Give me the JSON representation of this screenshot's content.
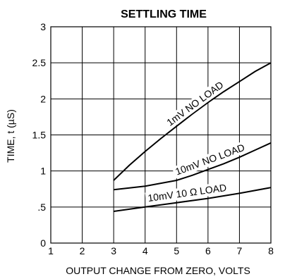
{
  "chart_data": {
    "type": "line",
    "title": "SETTLING TIME",
    "xlabel": "OUTPUT CHANGE FROM ZERO, VOLTS",
    "ylabel": "TIME, t (µS)",
    "xlim": [
      1,
      8
    ],
    "ylim": [
      0,
      3
    ],
    "x_ticks": [
      1,
      2,
      3,
      4,
      5,
      6,
      7,
      8
    ],
    "x_tick_labels": [
      "1",
      "2",
      "3",
      "4",
      "5",
      "6",
      "7",
      "8"
    ],
    "y_ticks": [
      0,
      0.5,
      1,
      1.5,
      2,
      2.5,
      3
    ],
    "y_tick_labels": [
      "0",
      ".5",
      "1",
      "1.5",
      "2",
      "2.5",
      "3"
    ],
    "grid": true,
    "series": [
      {
        "name": "1mV NO LOAD",
        "x": [
          3,
          3.5,
          4,
          4.5,
          5,
          5.5,
          6,
          6.5,
          7,
          7.5,
          8
        ],
        "y": [
          0.87,
          1.08,
          1.27,
          1.45,
          1.62,
          1.79,
          1.95,
          2.1,
          2.24,
          2.38,
          2.5
        ]
      },
      {
        "name": "10mV NO LOAD",
        "x": [
          3,
          4,
          5,
          5.5,
          6,
          6.5,
          7,
          7.5,
          8
        ],
        "y": [
          0.74,
          0.79,
          0.87,
          0.94,
          1.02,
          1.1,
          1.19,
          1.29,
          1.39
        ]
      },
      {
        "name": "10mV  10 Ω LOAD",
        "x": [
          3,
          4,
          5,
          6,
          7,
          8
        ],
        "y": [
          0.44,
          0.5,
          0.56,
          0.62,
          0.69,
          0.77
        ]
      }
    ]
  }
}
